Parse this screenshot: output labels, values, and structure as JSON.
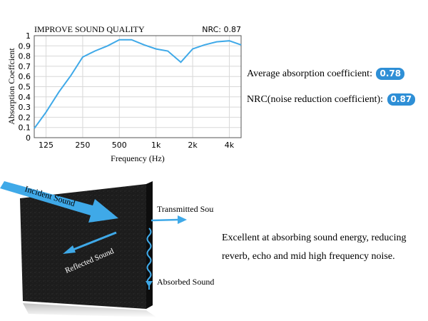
{
  "chart_data": {
    "type": "line",
    "title": "IMPROVE SOUND QUALITY",
    "nrc_label": "NRC: 0.87",
    "xlabel": "Frequency (Hz)",
    "ylabel": "Absorption Coeffcient",
    "x_scale": "log",
    "x_tick_labels": [
      "125",
      "250",
      "500",
      "1k",
      "2k",
      "4k"
    ],
    "x_tick_values": [
      125,
      250,
      500,
      1000,
      2000,
      4000
    ],
    "xlim": [
      100,
      5000
    ],
    "ylim": [
      0,
      1
    ],
    "y_tick_labels": [
      "0",
      "0.1",
      "0.2",
      "0.3",
      "0.4",
      "0.5",
      "0.6",
      "0.7",
      "0.8",
      "0.9",
      "1"
    ],
    "y_tick_values": [
      0,
      0.1,
      0.2,
      0.3,
      0.4,
      0.5,
      0.6,
      0.7,
      0.8,
      0.9,
      1.0
    ],
    "grid": true,
    "line_color": "#3fa9e8",
    "series": [
      {
        "x": [
          100,
          125,
          160,
          200,
          250,
          315,
          400,
          500,
          630,
          800,
          1000,
          1250,
          1600,
          2000,
          2500,
          3150,
          4000,
          5000
        ],
        "values": [
          0.09,
          0.25,
          0.45,
          0.61,
          0.79,
          0.85,
          0.9,
          0.96,
          0.96,
          0.91,
          0.87,
          0.85,
          0.74,
          0.87,
          0.91,
          0.94,
          0.95,
          0.91
        ]
      }
    ]
  },
  "info": {
    "average_label": "Average absorption coefficient:",
    "average_value": "0.78",
    "nrc_label": "NRC(noise reduction coefficient):",
    "nrc_value": "0.87",
    "badge_color": "#2e8fd6"
  },
  "diagram": {
    "incident_label": "Incident Sound",
    "reflected_label": "Reflected Sound",
    "transmitted_label": "Transmitted Sound",
    "absorbed_label": "Absorbed Sound",
    "arrow_color": "#3fa9e8",
    "panel_color": "#1c1c1c"
  },
  "description": "Excellent at absorbing sound energy, reducing reverb, echo and mid high frequency noise."
}
